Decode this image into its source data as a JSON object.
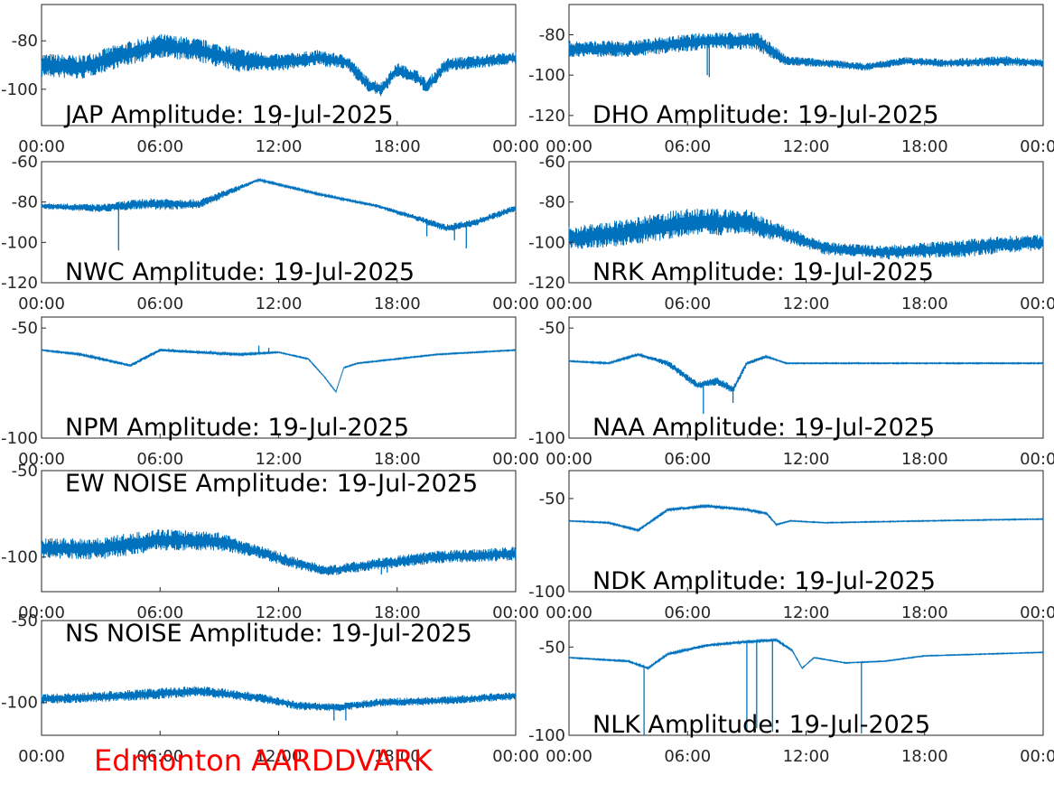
{
  "figure": {
    "footer_text": "Edmonton AARDDVARK",
    "footer_color": "#ff0000",
    "line_color": "#0072bd"
  },
  "chart_data": [
    {
      "type": "line",
      "title": "JAP Amplitude: 19-Jul-2025",
      "x_ticks": [
        "00:00",
        "06:00",
        "12:00",
        "18:00",
        "00:00"
      ],
      "xlim": [
        0,
        24
      ],
      "ylim": [
        -115,
        -65
      ],
      "y_ticks": [
        -80,
        -100
      ],
      "y_tick_labels": [
        "-80",
        "-100"
      ],
      "title_position": "bottom-left",
      "trend": [
        [
          0,
          -90
        ],
        [
          2,
          -91
        ],
        [
          4,
          -86
        ],
        [
          6,
          -82
        ],
        [
          8,
          -84
        ],
        [
          10,
          -88
        ],
        [
          12,
          -89
        ],
        [
          14,
          -87
        ],
        [
          15.5,
          -89
        ],
        [
          16.5,
          -98
        ],
        [
          17.2,
          -100
        ],
        [
          18,
          -92
        ],
        [
          19,
          -95
        ],
        [
          19.5,
          -99
        ],
        [
          20.5,
          -90
        ],
        [
          24,
          -87
        ]
      ],
      "noise": [
        [
          0,
          10
        ],
        [
          10,
          10
        ],
        [
          12,
          7
        ],
        [
          16,
          6
        ],
        [
          18,
          6
        ],
        [
          20,
          6
        ],
        [
          24,
          5
        ]
      ],
      "spikes": []
    },
    {
      "type": "line",
      "title": "DHO Amplitude: 19-Jul-2025",
      "x_ticks": [
        "00:00",
        "06:00",
        "12:00",
        "18:00",
        "00:00"
      ],
      "xlim": [
        0,
        24
      ],
      "ylim": [
        -125,
        -65
      ],
      "y_ticks": [
        -80,
        -100,
        -120
      ],
      "y_tick_labels": [
        "-80",
        "-100",
        "-120"
      ],
      "title_position": "bottom-left",
      "trend": [
        [
          0,
          -87
        ],
        [
          3,
          -87
        ],
        [
          5,
          -85
        ],
        [
          7,
          -83
        ],
        [
          9.5,
          -83
        ],
        [
          11,
          -93
        ],
        [
          13,
          -94
        ],
        [
          15,
          -96
        ],
        [
          17,
          -93
        ],
        [
          19,
          -94
        ],
        [
          22,
          -93
        ],
        [
          24,
          -94
        ]
      ],
      "noise": [
        [
          0,
          8
        ],
        [
          10,
          9
        ],
        [
          11,
          5
        ],
        [
          13,
          4
        ],
        [
          18,
          4
        ],
        [
          22,
          5
        ],
        [
          24,
          4
        ]
      ],
      "spikes": [
        [
          7.0,
          -100
        ],
        [
          7.1,
          -101
        ]
      ]
    },
    {
      "type": "line",
      "title": "NWC Amplitude: 19-Jul-2025",
      "x_ticks": [
        "00:00",
        "06:00",
        "12:00",
        "18:00",
        "00:00"
      ],
      "xlim": [
        0,
        24
      ],
      "ylim": [
        -120,
        -60
      ],
      "y_ticks": [
        -60,
        -80,
        -100,
        -120
      ],
      "y_tick_labels": [
        "-60",
        "-80",
        "-100",
        "-120"
      ],
      "title_position": "bottom-left",
      "trend": [
        [
          0,
          -82
        ],
        [
          3,
          -83
        ],
        [
          5,
          -81
        ],
        [
          8,
          -81
        ],
        [
          10,
          -73
        ],
        [
          11,
          -69
        ],
        [
          14,
          -76
        ],
        [
          17,
          -82
        ],
        [
          19,
          -88
        ],
        [
          20.5,
          -93
        ],
        [
          22,
          -90
        ],
        [
          24,
          -83
        ]
      ],
      "noise": [
        [
          0,
          3
        ],
        [
          3,
          4
        ],
        [
          6,
          6
        ],
        [
          9,
          4
        ],
        [
          11,
          1
        ],
        [
          16,
          1
        ],
        [
          19,
          3
        ],
        [
          21,
          4
        ],
        [
          24,
          3
        ]
      ],
      "spikes": [
        [
          3.9,
          -104
        ],
        [
          19.5,
          -97
        ],
        [
          20.9,
          -99
        ],
        [
          21.5,
          -103
        ]
      ]
    },
    {
      "type": "line",
      "title": "NRK Amplitude: 19-Jul-2025",
      "x_ticks": [
        "00:00",
        "06:00",
        "12:00",
        "18:00",
        "00:00"
      ],
      "xlim": [
        0,
        24
      ],
      "ylim": [
        -120,
        -60
      ],
      "y_ticks": [
        -60,
        -80,
        -100,
        -120
      ],
      "y_tick_labels": [
        "-60",
        "-80",
        "-100",
        "-120"
      ],
      "title_position": "bottom-left",
      "trend": [
        [
          0,
          -98
        ],
        [
          3,
          -95
        ],
        [
          6,
          -90
        ],
        [
          9,
          -90
        ],
        [
          11,
          -96
        ],
        [
          13,
          -103
        ],
        [
          16,
          -105
        ],
        [
          20,
          -103
        ],
        [
          22,
          -101
        ],
        [
          24,
          -100
        ]
      ],
      "noise": [
        [
          0,
          12
        ],
        [
          5,
          14
        ],
        [
          9,
          13
        ],
        [
          11,
          8
        ],
        [
          14,
          6
        ],
        [
          20,
          9
        ],
        [
          24,
          8
        ]
      ],
      "spikes": []
    },
    {
      "type": "line",
      "title": "NPM Amplitude: 19-Jul-2025",
      "x_ticks": [
        "00:00",
        "06:00",
        "12:00",
        "18:00",
        "00:00"
      ],
      "xlim": [
        0,
        24
      ],
      "ylim": [
        -100,
        -45
      ],
      "y_ticks": [
        -50,
        -100
      ],
      "y_tick_labels": [
        "-50",
        "-100"
      ],
      "title_position": "bottom-left",
      "trend": [
        [
          0,
          -60
        ],
        [
          2,
          -62
        ],
        [
          4.5,
          -67
        ],
        [
          6,
          -60
        ],
        [
          8,
          -61
        ],
        [
          10,
          -62
        ],
        [
          12,
          -61
        ],
        [
          13.5,
          -64
        ],
        [
          14.3,
          -72
        ],
        [
          14.9,
          -79
        ],
        [
          15.3,
          -68
        ],
        [
          16,
          -66
        ],
        [
          20,
          -62
        ],
        [
          24,
          -60
        ]
      ],
      "noise": [
        [
          0,
          0.5
        ],
        [
          3,
          1
        ],
        [
          5,
          1.5
        ],
        [
          10,
          1
        ],
        [
          12,
          0.5
        ],
        [
          24,
          0.5
        ]
      ],
      "spikes": [
        [
          11.0,
          -58
        ],
        [
          11.5,
          -59
        ]
      ]
    },
    {
      "type": "line",
      "title": "NAA Amplitude: 19-Jul-2025",
      "x_ticks": [
        "00:00",
        "06:00",
        "12:00",
        "18:00",
        "00:00"
      ],
      "xlim": [
        0,
        24
      ],
      "ylim": [
        -100,
        -45
      ],
      "y_ticks": [
        -50,
        -100
      ],
      "y_tick_labels": [
        "-50",
        "-100"
      ],
      "title_position": "bottom-left",
      "trend": [
        [
          0,
          -65
        ],
        [
          2,
          -66
        ],
        [
          3.5,
          -62
        ],
        [
          5,
          -66
        ],
        [
          6.5,
          -76
        ],
        [
          7.5,
          -74
        ],
        [
          8.3,
          -78
        ],
        [
          9,
          -66
        ],
        [
          10,
          -63
        ],
        [
          11,
          -66
        ],
        [
          14,
          -66
        ],
        [
          24,
          -66
        ]
      ],
      "noise": [
        [
          0,
          0.5
        ],
        [
          4,
          1
        ],
        [
          5,
          3
        ],
        [
          8,
          4
        ],
        [
          9,
          2
        ],
        [
          10.5,
          0.5
        ],
        [
          24,
          0.5
        ]
      ],
      "spikes": [
        [
          6.8,
          -89
        ],
        [
          8.3,
          -84
        ]
      ]
    },
    {
      "type": "line",
      "title": "EW NOISE Amplitude: 19-Jul-2025",
      "x_ticks": [
        "00:00",
        "06:00",
        "12:00",
        "18:00",
        "00:00"
      ],
      "xlim": [
        0,
        24
      ],
      "ylim": [
        -120,
        -50
      ],
      "y_ticks": [
        -50,
        -100
      ],
      "y_tick_labels": [
        "-50",
        "-100"
      ],
      "title_position": "top-left",
      "trend": [
        [
          0,
          -95
        ],
        [
          3,
          -95
        ],
        [
          6,
          -90
        ],
        [
          9,
          -91
        ],
        [
          11,
          -97
        ],
        [
          13,
          -104
        ],
        [
          14.5,
          -108
        ],
        [
          17,
          -104
        ],
        [
          20,
          -100
        ],
        [
          24,
          -98
        ]
      ],
      "noise": [
        [
          0,
          12
        ],
        [
          4,
          13
        ],
        [
          8,
          12
        ],
        [
          11,
          8
        ],
        [
          14,
          6
        ],
        [
          18,
          7
        ],
        [
          24,
          8
        ]
      ],
      "spikes": [
        [
          17.2,
          -110
        ],
        [
          17.5,
          -109
        ]
      ]
    },
    {
      "type": "line",
      "title": "NDK Amplitude: 19-Jul-2025",
      "x_ticks": [
        "00:00",
        "06:00",
        "12:00",
        "18:00",
        "00:00"
      ],
      "xlim": [
        0,
        24
      ],
      "ylim": [
        -100,
        -35
      ],
      "y_ticks": [
        -50,
        -100
      ],
      "y_tick_labels": [
        "-50",
        "-100"
      ],
      "title_position": "bottom-left",
      "trend": [
        [
          0,
          -62
        ],
        [
          2,
          -63
        ],
        [
          3.5,
          -67
        ],
        [
          5,
          -56
        ],
        [
          7,
          -54
        ],
        [
          9,
          -56
        ],
        [
          10,
          -58
        ],
        [
          10.5,
          -64
        ],
        [
          11.2,
          -62
        ],
        [
          13,
          -63
        ],
        [
          18,
          -62
        ],
        [
          24,
          -61
        ]
      ],
      "noise": [
        [
          0,
          0.5
        ],
        [
          4,
          1
        ],
        [
          6,
          1.5
        ],
        [
          10,
          1
        ],
        [
          11,
          0.5
        ],
        [
          24,
          0.5
        ]
      ],
      "spikes": []
    },
    {
      "type": "line",
      "title": "NS NOISE Amplitude: 19-Jul-2025",
      "x_ticks": [
        "00:00",
        "06:00",
        "12:00",
        "18:00",
        "00:00"
      ],
      "xlim": [
        0,
        24
      ],
      "ylim": [
        -120,
        -50
      ],
      "y_ticks": [
        -50,
        -100
      ],
      "y_tick_labels": [
        "-50",
        "-100"
      ],
      "title_position": "top-left",
      "trend": [
        [
          0,
          -98
        ],
        [
          4,
          -96
        ],
        [
          8,
          -93
        ],
        [
          11,
          -97
        ],
        [
          13,
          -102
        ],
        [
          15,
          -103
        ],
        [
          17,
          -100
        ],
        [
          20,
          -99
        ],
        [
          24,
          -96
        ]
      ],
      "noise": [
        [
          0,
          6
        ],
        [
          6,
          7
        ],
        [
          10,
          6
        ],
        [
          14,
          5
        ],
        [
          18,
          5
        ],
        [
          24,
          5
        ]
      ],
      "spikes": [
        [
          14.8,
          -111
        ],
        [
          15.4,
          -111
        ]
      ]
    },
    {
      "type": "line",
      "title": "NLK Amplitude: 19-Jul-2025",
      "x_ticks": [
        "00:00",
        "06:00",
        "12:00",
        "18:00",
        "00:00"
      ],
      "xlim": [
        0,
        24
      ],
      "ylim": [
        -100,
        -35
      ],
      "y_ticks": [
        -50,
        -100
      ],
      "y_tick_labels": [
        "-50",
        "-100"
      ],
      "title_position": "bottom-left",
      "trend": [
        [
          0,
          -56
        ],
        [
          3,
          -58
        ],
        [
          4,
          -62
        ],
        [
          5,
          -54
        ],
        [
          7,
          -49
        ],
        [
          9,
          -47
        ],
        [
          10.5,
          -46
        ],
        [
          11.3,
          -52
        ],
        [
          11.8,
          -62
        ],
        [
          12.4,
          -56
        ],
        [
          14,
          -59
        ],
        [
          16,
          -58
        ],
        [
          18,
          -55
        ],
        [
          24,
          -53
        ]
      ],
      "noise": [
        [
          0,
          0.5
        ],
        [
          4,
          1
        ],
        [
          7,
          1.5
        ],
        [
          11,
          1
        ],
        [
          12,
          0.5
        ],
        [
          24,
          0.5
        ]
      ],
      "spikes": [
        [
          3.8,
          -100
        ],
        [
          9.0,
          -98
        ],
        [
          9.5,
          -96
        ],
        [
          10.3,
          -98
        ],
        [
          14.8,
          -99
        ]
      ]
    }
  ]
}
